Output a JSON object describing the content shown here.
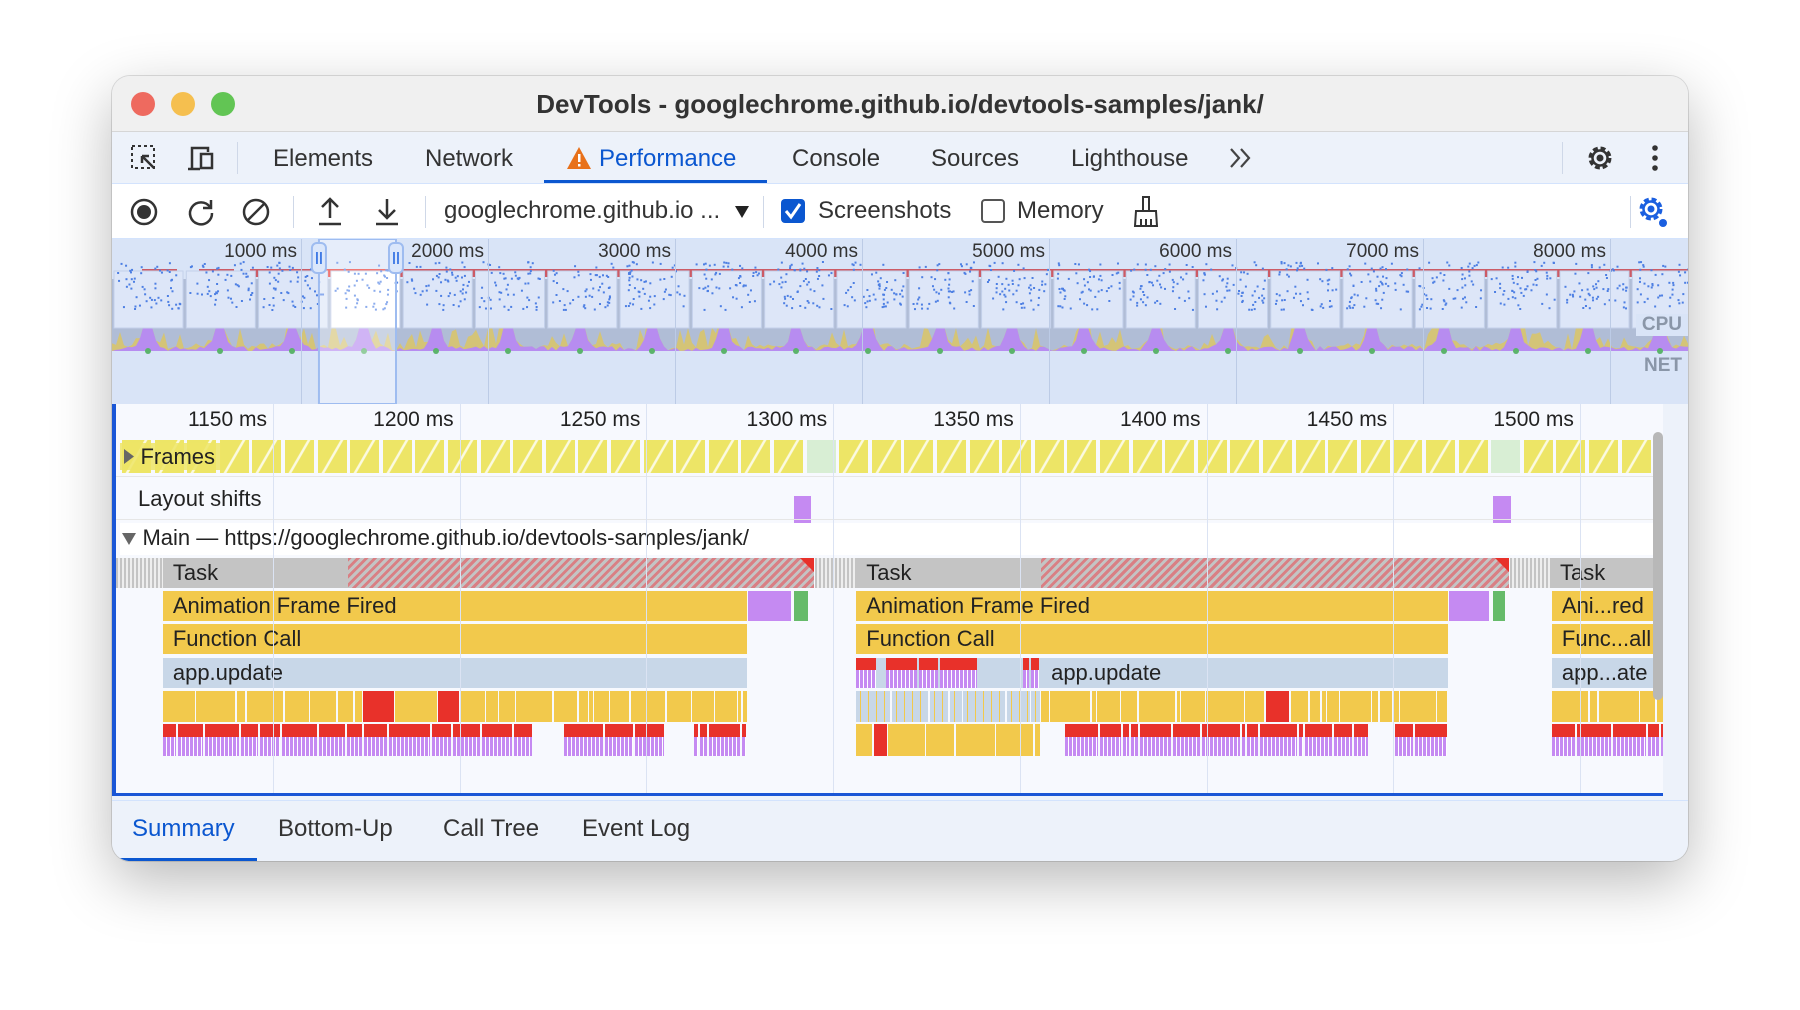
{
  "window": {
    "title": "DevTools - googlechrome.github.io/devtools-samples/jank/"
  },
  "tabs": [
    {
      "label": "Elements"
    },
    {
      "label": "Network"
    },
    {
      "label": "Performance",
      "active": true,
      "warning": true
    },
    {
      "label": "Console"
    },
    {
      "label": "Sources"
    },
    {
      "label": "Lighthouse"
    }
  ],
  "tabbar_icons": [
    "inspect-element-icon",
    "device-toolbar-icon",
    "more-tabs-chevron-icon",
    "settings-gear-icon",
    "kebab-menu-icon"
  ],
  "toolbar": {
    "page_select": "googlechrome.github.io ...",
    "screenshots_label": "Screenshots",
    "screenshots_checked": true,
    "memory_label": "Memory",
    "memory_checked": false,
    "icons": [
      "record-icon",
      "reload-icon",
      "clear-icon",
      "upload-icon",
      "download-icon",
      "garbage-collect-broom-icon",
      "capture-settings-gear-icon"
    ]
  },
  "overview": {
    "ticks": [
      "1000 ms",
      "2000 ms",
      "3000 ms",
      "4000 ms",
      "5000 ms",
      "6000 ms",
      "7000 ms",
      "8000 ms"
    ],
    "tick_values": [
      1000,
      2000,
      3000,
      4000,
      5000,
      6000,
      7000,
      8000
    ],
    "cpu_label": "CPU",
    "net_label": "NET",
    "selection_ms": [
      1096,
      1508
    ]
  },
  "flame": {
    "ticks": [
      "1150 ms",
      "1200 ms",
      "1250 ms",
      "1300 ms",
      "1350 ms",
      "1400 ms",
      "1450 ms",
      "1500 ms"
    ],
    "tick_values": [
      1150,
      1200,
      1250,
      1300,
      1350,
      1400,
      1450,
      1500
    ],
    "frames_label": "Frames",
    "dropped_frames_ms": [
      [
        1294,
        1300
      ],
      [
        1477,
        1483
      ]
    ],
    "layout_shifts_label": "Layout shifts",
    "layout_shifts_ms": [
      [
        1289.6,
        1294
      ],
      [
        1476.6,
        1481.5
      ]
    ],
    "main_label": "Main — https://googlechrome.github.io/devtools-samples/jank/",
    "tasks": [
      {
        "label": "Task",
        "start": 1120.5,
        "end": 1295.1,
        "long_from": 1170,
        "aff": {
          "label": "Animation Frame Fired",
          "start": 1120.5,
          "end": 1277.3
        },
        "fc": {
          "label": "Function Call",
          "start": 1120.5,
          "end": 1277.3
        },
        "upd": {
          "label": "app.update",
          "start": 1120.5,
          "end": 1277.3,
          "label_from": 1120.5
        },
        "purple": [
          1277.3,
          1289
        ],
        "green": [
          1289.6,
          1293.6
        ]
      },
      {
        "label": "Task",
        "start": 1306.2,
        "end": 1481.2,
        "long_from": 1355.7,
        "aff": {
          "label": "Animation Frame Fired",
          "start": 1306.2,
          "end": 1464.9
        },
        "fc": {
          "label": "Function Call",
          "start": 1306.2,
          "end": 1464.9
        },
        "upd": {
          "label": "app.update",
          "start": 1306.2,
          "end": 1464.9,
          "label_from": 1355.7
        },
        "purple": [
          1464.9,
          1476
        ],
        "green": [
          1476.6,
          1480.3
        ]
      },
      {
        "label": "Task",
        "start": 1492,
        "end": 1530,
        "long_from": 1530,
        "aff": {
          "label": "Ani...red",
          "start": 1492.5,
          "end": 1530
        },
        "fc": {
          "label": "Func...all",
          "start": 1492.5,
          "end": 1530
        },
        "upd": {
          "label": "app...ate",
          "start": 1492.5,
          "end": 1530,
          "label_from": 1492.5
        }
      }
    ]
  },
  "bottom_tabs": [
    {
      "label": "Summary",
      "active": true
    },
    {
      "label": "Bottom-Up"
    },
    {
      "label": "Call Tree"
    },
    {
      "label": "Event Log"
    }
  ],
  "colors": {
    "accent": "#0b57d0",
    "task": "#c4c4c4",
    "scripting": "#f2c94c",
    "app_update": "#c8d7e8",
    "long_task": "#d94f4f",
    "rendering": "#c58af2",
    "painting": "#66bb6a",
    "frame": "#ede566",
    "dropped_frame": "#d8eed4",
    "layout_shift": "#c58af2"
  }
}
